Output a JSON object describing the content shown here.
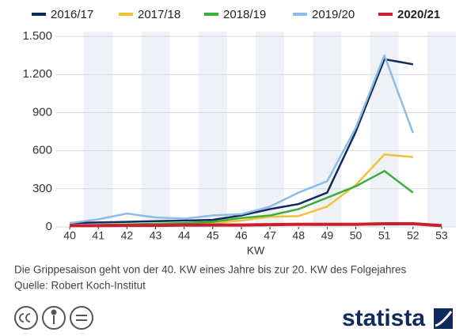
{
  "chart_data": {
    "type": "line",
    "x_label": "KW",
    "x": [
      40,
      41,
      42,
      43,
      44,
      45,
      46,
      47,
      48,
      49,
      50,
      51,
      52,
      53
    ],
    "xlim": [
      39.5,
      53.5
    ],
    "xticks": [
      40,
      41,
      42,
      43,
      44,
      45,
      46,
      47,
      48,
      49,
      50,
      51,
      52,
      53
    ],
    "ylim": [
      0,
      1500
    ],
    "yticks": [
      0,
      300,
      600,
      900,
      {
        "value": 1200,
        "label": "1.200"
      },
      {
        "value": 1500,
        "label": "1.500"
      }
    ],
    "grid": true,
    "legend": "top",
    "series": [
      {
        "name": "2016/17",
        "color": "#0f2a5c",
        "values": [
          30,
          35,
          40,
          45,
          50,
          55,
          90,
          140,
          180,
          270,
          750,
          1320,
          1280,
          null
        ]
      },
      {
        "name": "2017/18",
        "color": "#f2c13a",
        "values": [
          10,
          15,
          20,
          20,
          25,
          30,
          50,
          80,
          85,
          160,
          330,
          570,
          550,
          null
        ]
      },
      {
        "name": "2018/19",
        "color": "#3cae3c",
        "values": [
          10,
          15,
          20,
          25,
          30,
          40,
          70,
          90,
          140,
          230,
          320,
          440,
          270,
          null
        ]
      },
      {
        "name": "2019/20",
        "color": "#8cbde8",
        "values": [
          30,
          60,
          105,
          75,
          65,
          90,
          100,
          160,
          270,
          360,
          780,
          1350,
          740,
          null
        ]
      },
      {
        "name": "2020/21",
        "color": "#c8202e",
        "values": [
          10,
          10,
          12,
          12,
          15,
          15,
          15,
          18,
          20,
          20,
          20,
          25,
          25,
          10
        ]
      }
    ]
  },
  "footer": {
    "note": "Die Grippesaison geht von der 40. KW eines Jahre bis zur 20. KW des Folgejahres",
    "source": "Quelle: Robert Koch-Institut",
    "brand": "statista"
  }
}
